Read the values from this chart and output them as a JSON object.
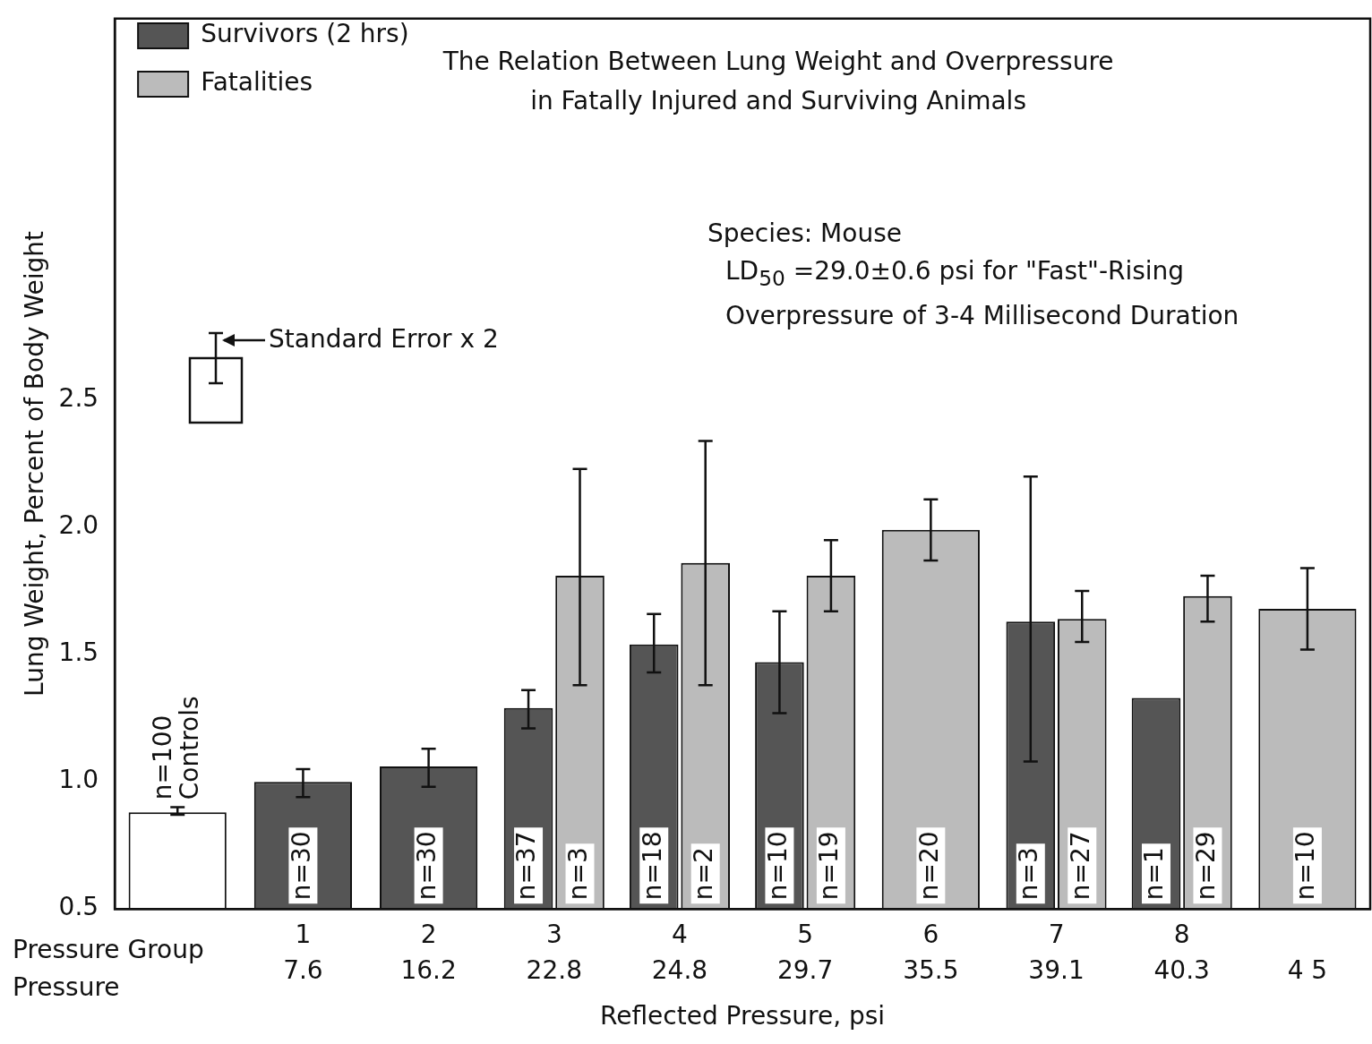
{
  "chart_data": {
    "type": "bar",
    "title": "The Relation Between Lung Weight and Overpressure\nin Fatally Injured and Surviving Animals",
    "xlabel": "Reflected Pressure, psi",
    "ylabel": "Lung Weight, Percent of Body Weight",
    "categories": [
      null,
      "1\n7.6",
      "2\n16.2",
      "3\n22.8",
      "4\n24.8",
      "5\n29.7",
      "6\n35.5",
      "7\n39.1",
      "8\n40.3",
      "\n4 5"
    ],
    "series": [
      {
        "name": "Survivors (2 hrs)",
        "color": "#555555",
        "values": [
          null,
          1.0,
          1.06,
          1.29,
          1.54,
          1.47,
          null,
          1.63,
          1.33,
          null
        ],
        "errors": [
          null,
          [
            0.94,
            1.05
          ],
          [
            0.98,
            1.13
          ],
          [
            1.21,
            1.36
          ],
          [
            1.43,
            1.66
          ],
          [
            1.27,
            1.67
          ],
          null,
          [
            1.08,
            2.2
          ],
          null,
          null
        ]
      },
      {
        "name": "Fatalities",
        "color": "#bbbbbb",
        "values": [
          null,
          null,
          null,
          1.81,
          1.86,
          1.81,
          1.99,
          1.64,
          1.73,
          1.68
        ],
        "errors": [
          null,
          null,
          null,
          [
            1.38,
            2.23
          ],
          [
            1.38,
            2.34
          ],
          [
            1.67,
            1.95
          ],
          [
            1.87,
            2.11
          ],
          [
            1.55,
            1.75
          ],
          [
            1.63,
            1.81
          ],
          [
            1.52,
            1.84
          ]
        ]
      },
      {
        "color": "#ffffff",
        "values": [
          0.88,
          null,
          null,
          null,
          null,
          null,
          null,
          null,
          null,
          null
        ],
        "errors": [
          [
            0.87,
            0.9
          ],
          null,
          null,
          null,
          null,
          null,
          null,
          null,
          null,
          null
        ]
      }
    ],
    "ylim": [
      0.5,
      4.0
    ],
    "yticks": [
      {
        "value": 0.5,
        "label": "0.5"
      },
      {
        "value": 1,
        "label": "1.0"
      },
      {
        "value": 1.5,
        "label": "1.5"
      },
      {
        "value": 2,
        "label": "2.0"
      },
      {
        "value": 2.5,
        "label": "2.5"
      }
    ],
    "legend": "top left",
    "annotations": [
      "Standard Error x 2",
      "Species: Mouse",
      "LD$_{50}$ =29.0±0.6 psi for \"Fast\"-Rising",
      "Overpressure of 3-4 Millisecond Duration",
      "Pressure Group",
      "Pressure",
      "n=100\nControls",
      "n=30",
      "n=30",
      "n=37",
      "n=3",
      "n=18",
      "n=2",
      "n=10",
      "n=19",
      "n=20",
      "n=3",
      "n=27",
      "n=1",
      "n=29",
      "n=10"
    ]
  }
}
